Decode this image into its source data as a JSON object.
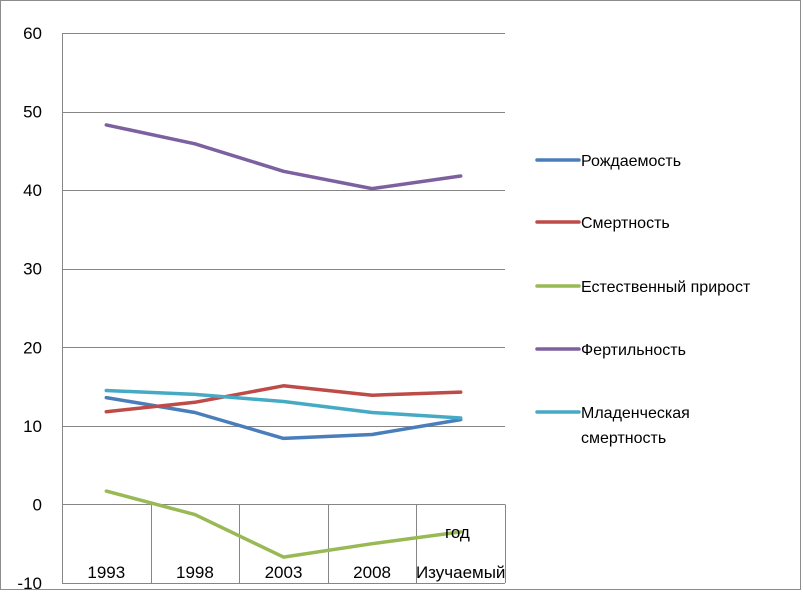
{
  "chart_data": {
    "type": "line",
    "title": "",
    "xlabel": "",
    "ylabel": "",
    "categories": [
      "1993",
      "1998",
      "2003",
      "2008",
      "Изучаемый"
    ],
    "ylim": [
      -10,
      60
    ],
    "yticks": [
      -10,
      0,
      10,
      20,
      30,
      40,
      50,
      60
    ],
    "grid": "horizontal",
    "legend_position": "right",
    "annotation": "год",
    "series": [
      {
        "name": "Рождаемость",
        "color": "#4a7ebb",
        "values": [
          13.6,
          11.7,
          8.4,
          8.9,
          10.8
        ]
      },
      {
        "name": "Смертность",
        "color": "#be4b48",
        "values": [
          11.8,
          13.0,
          15.1,
          13.9,
          14.3
        ]
      },
      {
        "name": "Естественный прирост",
        "color": "#98b954",
        "values": [
          1.7,
          -1.3,
          -6.7,
          -5.0,
          -3.5
        ]
      },
      {
        "name": "Фертильность",
        "color": "#7d60a0",
        "values": [
          48.3,
          45.9,
          42.4,
          40.2,
          41.8
        ]
      },
      {
        "name": "Младенческая смертность",
        "color": "#46aac5",
        "values": [
          14.5,
          14.0,
          13.1,
          11.7,
          11.0
        ]
      }
    ]
  }
}
